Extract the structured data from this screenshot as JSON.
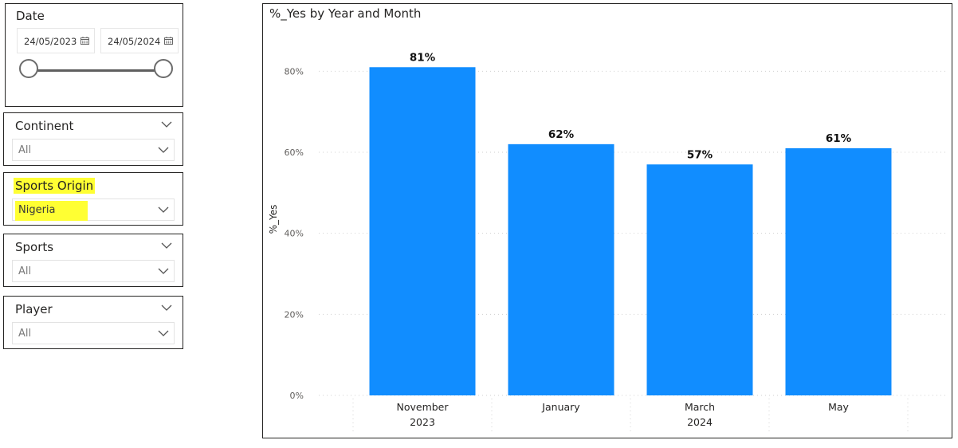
{
  "date_slicer": {
    "title": "Date",
    "start": "24/05/2023",
    "end": "24/05/2024",
    "icon": "calendar-icon"
  },
  "filters": [
    {
      "title": "Continent",
      "value": "All"
    },
    {
      "title": "Sports Origin",
      "value": "Nigeria"
    },
    {
      "title": "Sports",
      "value": "All"
    },
    {
      "title": "Player",
      "value": "All"
    }
  ],
  "colors": {
    "bar": "#118dff",
    "highlight": "#ffff33",
    "grid": "#d0d0d0"
  },
  "chart_data": {
    "type": "bar",
    "title": "%_Yes by Year and Month",
    "ylabel": "%_Yes",
    "xlabel": "",
    "categories": [
      "November",
      "January",
      "March",
      "May"
    ],
    "years": [
      {
        "label": "2023",
        "span": [
          0,
          0
        ]
      },
      {
        "label": "2024",
        "span": [
          1,
          3
        ]
      }
    ],
    "values": [
      81,
      62,
      57,
      61
    ],
    "data_labels": [
      "81%",
      "62%",
      "57%",
      "61%"
    ],
    "yticks": [
      "0%",
      "20%",
      "40%",
      "60%",
      "80%"
    ],
    "ylim": [
      0,
      90
    ],
    "grid": true
  }
}
